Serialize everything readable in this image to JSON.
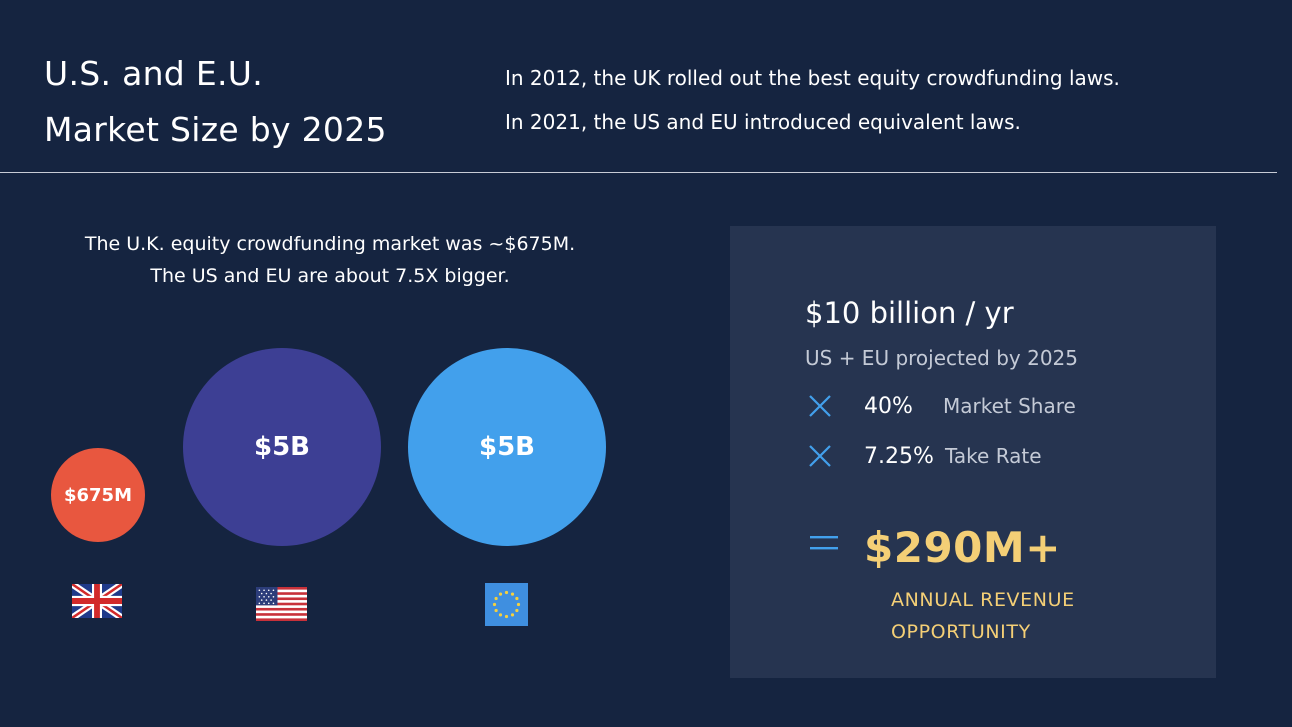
{
  "header": {
    "title_line1": "U.S. and E.U.",
    "title_line2": "Market Size by 2025",
    "intro_line1": "In 2012, the UK rolled out the best equity crowdfunding laws.",
    "intro_line2": "In 2021, the US and EU introduced equivalent laws."
  },
  "left": {
    "lead_line1": "The U.K. equity crowdfunding market was ~$675M.",
    "lead_line2": "The US and EU are about 7.5X bigger.",
    "bubbles": [
      {
        "label": "$675M",
        "color": "#e8573f",
        "flag_icon": "uk-flag-icon"
      },
      {
        "label": "$5B",
        "color": "#3d3f94",
        "flag_icon": "us-flag-icon"
      },
      {
        "label": "$5B",
        "color": "#42a0ec",
        "flag_icon": "eu-flag-icon"
      }
    ]
  },
  "panel": {
    "headline": "$10 billion / yr",
    "sub": "US + EU projected by 2025",
    "factors": [
      {
        "icon": "multiply-icon",
        "value": "40%",
        "label": "Market Share"
      },
      {
        "icon": "multiply-icon",
        "value": "7.25%",
        "label": "Take Rate"
      }
    ],
    "equals_icon": "equals-icon",
    "result": "$290M+",
    "result_label_line1": "ANNUAL REVENUE",
    "result_label_line2": "OPPORTUNITY",
    "accent_color": "#f4cf76",
    "icon_color": "#42a0ec"
  }
}
